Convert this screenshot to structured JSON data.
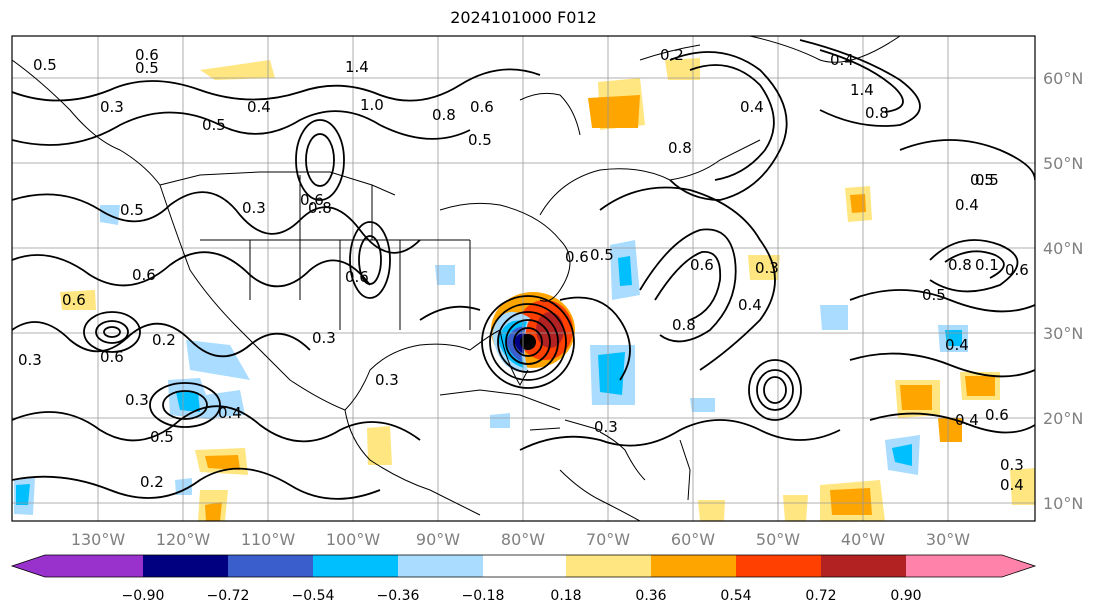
{
  "title": "2024101000 F012",
  "map": {
    "lon_labels": [
      "130°W",
      "120°W",
      "110°W",
      "100°W",
      "90°W",
      "80°W",
      "70°W",
      "60°W",
      "50°W",
      "40°W",
      "30°W"
    ],
    "lat_labels": [
      "60°N",
      "50°N",
      "40°N",
      "30°N",
      "20°N",
      "10°N"
    ],
    "contour_labels": [
      "0.5",
      "0.6",
      "0.5",
      "1.4",
      "1.0",
      "0.6",
      "0.2",
      "0.5",
      "0.8",
      "0.4",
      "0.3",
      "0.6",
      "0.5",
      "0.8",
      "0.5",
      "0.4",
      "0.8",
      "0.3",
      "0.6",
      "0.6",
      "0.3",
      "0.6",
      "0.5",
      "0.4",
      "0.5",
      "1.4",
      "0.8",
      "0.4",
      "0.5",
      "0.4",
      "0.8",
      "0.1",
      "0.6",
      "0.5",
      "0.3",
      "0.6",
      "0.8",
      "0.4",
      "0.6",
      "0.3",
      "0.3",
      "0.2",
      "0.6",
      "0.4",
      "0.3",
      "0.5",
      "0.2",
      "0.4",
      "0.4",
      "0.6",
      "0.3",
      "0.3"
    ]
  },
  "colorbar": {
    "ticks": [
      "−0.90",
      "−0.72",
      "−0.54",
      "−0.36",
      "−0.18",
      "0.18",
      "0.36",
      "0.54",
      "0.72",
      "0.90"
    ],
    "colors": [
      "#9932cc",
      "#000080",
      "#3a5fcd",
      "#00bfff",
      "#aadcff",
      "#ffffff",
      "#ffe680",
      "#ffa500",
      "#ff4000",
      "#b22222",
      "#ff82ab"
    ]
  }
}
